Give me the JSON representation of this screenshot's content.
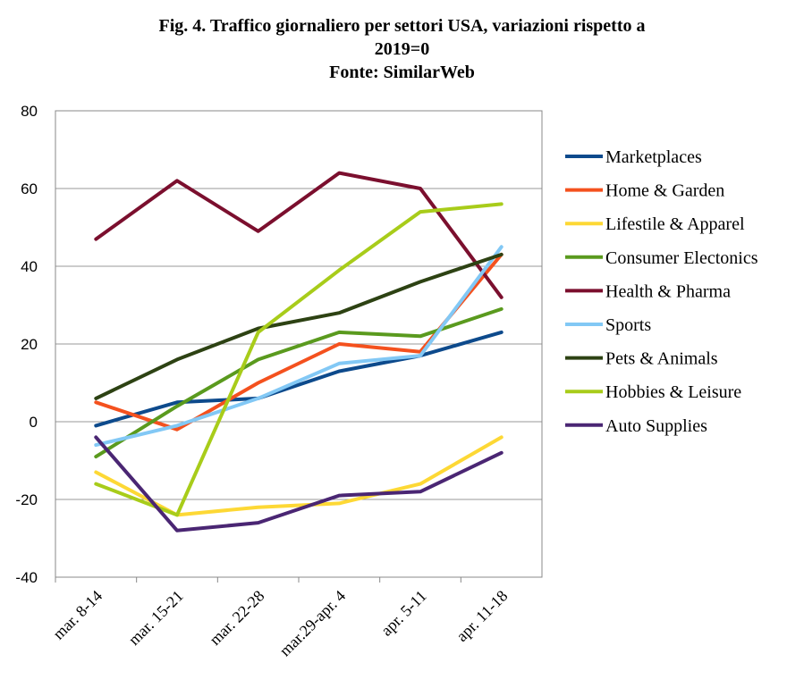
{
  "chart_data": {
    "type": "line",
    "title_lines": [
      "Fig. 4. Traffico giornaliero per settori USA, variazioni rispetto a",
      "2019=0",
      "Fonte: SimilarWeb"
    ],
    "categories": [
      "mar. 8-14",
      "mar. 15-21",
      "mar. 22-28",
      "mar.29-apr. 4",
      "apr. 5-11",
      "apr. 11-18"
    ],
    "ylim": [
      -40,
      80
    ],
    "yticks": [
      -40,
      -20,
      0,
      20,
      40,
      60,
      80
    ],
    "grid": true,
    "legend_position": "right",
    "series": [
      {
        "name": "Marketplaces",
        "color": "#0d4a8c",
        "values": [
          -1,
          5,
          6,
          13,
          17,
          23
        ]
      },
      {
        "name": "Home & Garden",
        "color": "#f4511e",
        "values": [
          5,
          -2,
          10,
          20,
          18,
          43
        ]
      },
      {
        "name": "Lifestile & Apparel",
        "color": "#fdd835",
        "values": [
          -13,
          -24,
          -22,
          -21,
          -16,
          -4
        ]
      },
      {
        "name": "Consumer Electonics",
        "color": "#5a9a1e",
        "values": [
          -9,
          4,
          16,
          23,
          22,
          29
        ]
      },
      {
        "name": "Health & Pharma",
        "color": "#7b0f2e",
        "values": [
          47,
          62,
          49,
          64,
          60,
          32
        ]
      },
      {
        "name": "Sports",
        "color": "#82c8f5",
        "values": [
          -6,
          -1,
          6,
          15,
          17,
          45
        ]
      },
      {
        "name": "Pets & Animals",
        "color": "#2d4213",
        "values": [
          6,
          16,
          24,
          28,
          36,
          43
        ]
      },
      {
        "name": "Hobbies & Leisure",
        "color": "#a8cc1a",
        "values": [
          -16,
          -24,
          23,
          39,
          54,
          56
        ]
      },
      {
        "name": "Auto Supplies",
        "color": "#4a2673",
        "values": [
          -4,
          -28,
          -26,
          -19,
          -18,
          -8
        ]
      }
    ]
  }
}
